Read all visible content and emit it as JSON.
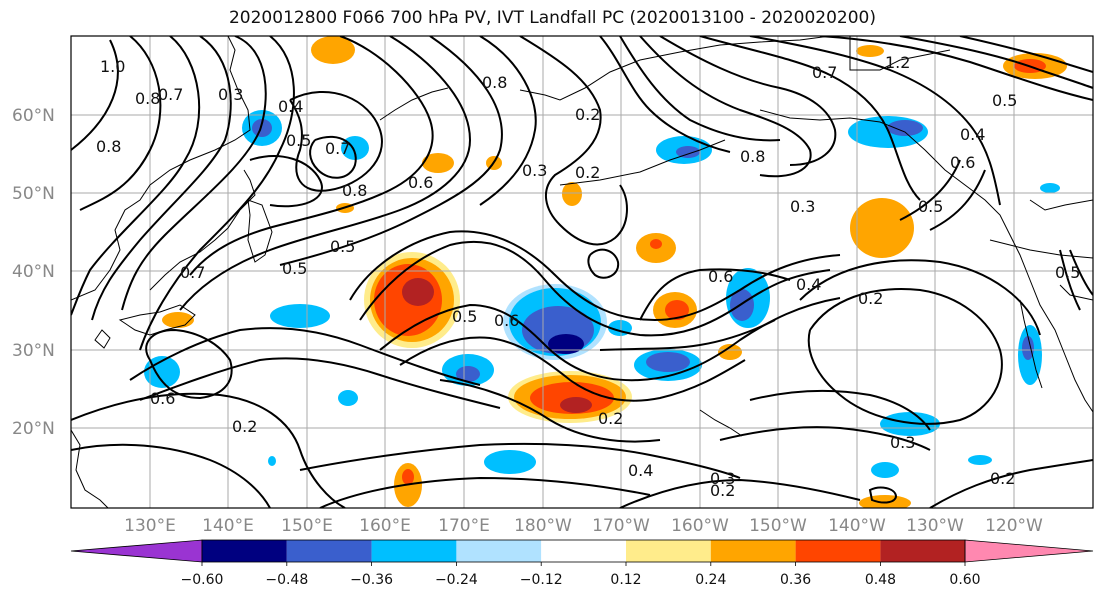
{
  "title": "2020012800 F066 700 hPa PV, IVT Landfall PC (2020013100 - 2020020200)",
  "map": {
    "lat_labels": [
      "60°N",
      "50°N",
      "40°N",
      "30°N",
      "20°N"
    ],
    "lon_labels": [
      "130°E",
      "140°E",
      "150°E",
      "160°E",
      "170°E",
      "180°W",
      "170°W",
      "160°W",
      "150°W",
      "140°W",
      "130°W",
      "120°W"
    ],
    "contour_labels": [
      "1.0",
      "0.8",
      "0.7",
      "0.3",
      "0.4",
      "0.5",
      "0.8",
      "0.7",
      "0.8",
      "0.6",
      "0.2",
      "0.3",
      "0.2",
      "0.8",
      "0.7",
      "1.2",
      "0.5",
      "0.4",
      "0.6",
      "0.5",
      "0.8",
      "0.3",
      "0.5",
      "0.5",
      "0.7",
      "0.5",
      "0.6",
      "0.4",
      "0.2",
      "0.5",
      "0.6",
      "0.6",
      "0.2",
      "0.2",
      "0.3",
      "0.4",
      "0.3",
      "0.2",
      "0.2"
    ]
  },
  "colorbar": {
    "colors": [
      "#9a34d2",
      "#000080",
      "#3a5fcd",
      "#00bfff",
      "#b0e2ff",
      "#ffffff",
      "#ffec8b",
      "#ffa500",
      "#ff4500",
      "#b22222",
      "#ff88b0"
    ],
    "tick_labels": [
      "−0.60",
      "−0.48",
      "−0.36",
      "−0.24",
      "−0.12",
      "0.12",
      "0.24",
      "0.36",
      "0.48",
      "0.60"
    ]
  }
}
